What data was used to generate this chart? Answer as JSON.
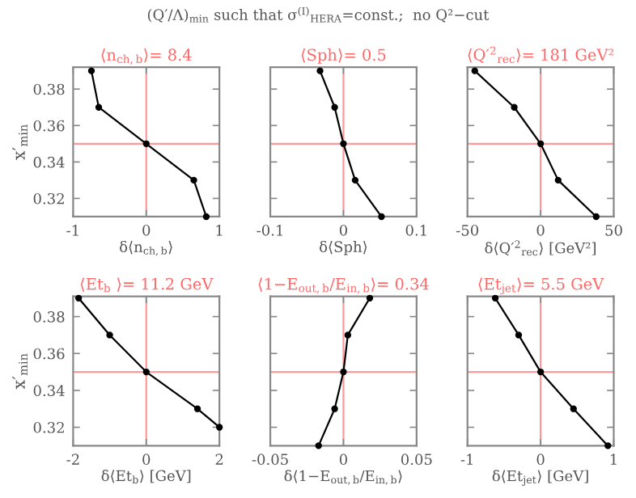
{
  "chart_data": [
    {
      "type": "line",
      "title": "⟨n$_{ch,b}$⟩= 8.4",
      "xlabel": "δ⟨n$_{ch,b}$⟩",
      "ylabel": "x′$_{min}$",
      "annotations": [
        "(Q′/Λ)$_{min}$ such that σ$^{(I)}$$_{HERA}$=const.;  no Q²−cut"
      ],
      "x": [
        -0.75,
        -0.65,
        0,
        0.65,
        0.82
      ],
      "series": [
        {
          "color": "#000000",
          "values": [
            0.39,
            0.37,
            0.35,
            0.33,
            0.31
          ]
        }
      ],
      "xlim": [
        -1,
        1
      ],
      "xticks": [
        -1,
        0,
        1
      ],
      "ylim": [
        0.31,
        0.392
      ],
      "yticks": [
        0.32,
        0.34,
        0.36,
        0.38
      ],
      "ref_lines": [
        {
          "axis": "x",
          "value": 0,
          "color": "#ff9999"
        },
        {
          "axis": "y",
          "value": 0.35,
          "color": "#ff9999"
        }
      ],
      "marker": "circle",
      "grid": false
    },
    {
      "type": "line",
      "title": "⟨Sph⟩= 0.5",
      "xlabel": "δ⟨Sph⟩",
      "x": [
        -0.032,
        -0.012,
        0,
        0.016,
        0.052
      ],
      "series": [
        {
          "color": "#000000",
          "values": [
            0.39,
            0.37,
            0.35,
            0.33,
            0.31
          ]
        }
      ],
      "xlim": [
        -0.1,
        0.1
      ],
      "xticks": [
        -0.1,
        0,
        0.1
      ],
      "ylim": [
        0.31,
        0.392
      ],
      "yticks": [
        0.32,
        0.34,
        0.36,
        0.38
      ],
      "tick_labels": "x",
      "ref_lines": [
        {
          "axis": "x",
          "value": 0,
          "color": "#ff9999"
        },
        {
          "axis": "y",
          "value": 0.35,
          "color": "#ff9999"
        }
      ],
      "marker": "circle",
      "grid": false
    },
    {
      "type": "line",
      "title": "⟨Q′$^{2}$$_{rec}$⟩= 181 GeV²",
      "xlabel": "δ⟨Q′$^{2}$$_{rec}$⟩ [GeV²]",
      "x": [
        -45,
        -18,
        0,
        12,
        38
      ],
      "series": [
        {
          "color": "#000000",
          "values": [
            0.39,
            0.37,
            0.35,
            0.33,
            0.31
          ]
        }
      ],
      "xlim": [
        -50,
        50
      ],
      "xticks": [
        -50,
        0,
        50
      ],
      "ylim": [
        0.31,
        0.392
      ],
      "yticks": [
        0.32,
        0.34,
        0.36,
        0.38
      ],
      "tick_labels": "x",
      "ref_lines": [
        {
          "axis": "x",
          "value": 0,
          "color": "#ff9999"
        },
        {
          "axis": "y",
          "value": 0.35,
          "color": "#ff9999"
        }
      ],
      "marker": "circle",
      "grid": false
    },
    {
      "type": "line",
      "title": "⟨Et$_{b}$ ⟩= 11.2 GeV",
      "xlabel": "δ⟨Et$_{b}$⟩ [GeV]",
      "ylabel": "x′$_{min}$",
      "x": [
        -1.85,
        -1.0,
        0,
        1.4,
        2.0
      ],
      "series": [
        {
          "color": "#000000",
          "values": [
            0.39,
            0.37,
            0.35,
            0.33,
            0.32
          ]
        }
      ],
      "xlim": [
        -2,
        2
      ],
      "xticks": [
        -2,
        0,
        2
      ],
      "ylim": [
        0.31,
        0.391
      ],
      "yticks": [
        0.32,
        0.34,
        0.36,
        0.38
      ],
      "ref_lines": [
        {
          "axis": "x",
          "value": 0,
          "color": "#ff9999"
        },
        {
          "axis": "y",
          "value": 0.35,
          "color": "#ff9999"
        }
      ],
      "marker": "circle",
      "grid": false
    },
    {
      "type": "line",
      "title": "⟨1−E$_{out,b}$/E$_{in,b}$⟩= 0.34",
      "xlabel": "δ⟨1−E$_{out,b}$/E$_{in,b}$⟩",
      "x": [
        0.018,
        0.003,
        0,
        -0.006,
        -0.017
      ],
      "series": [
        {
          "color": "#000000",
          "values": [
            0.39,
            0.37,
            0.35,
            0.33,
            0.31
          ]
        }
      ],
      "xlim": [
        -0.05,
        0.05
      ],
      "xticks": [
        -0.05,
        0,
        0.05
      ],
      "ylim": [
        0.31,
        0.391
      ],
      "yticks": [
        0.32,
        0.34,
        0.36,
        0.38
      ],
      "tick_labels": "x",
      "ref_lines": [
        {
          "axis": "x",
          "value": 0,
          "color": "#ff9999"
        },
        {
          "axis": "y",
          "value": 0.35,
          "color": "#ff9999"
        }
      ],
      "marker": "circle",
      "grid": false
    },
    {
      "type": "line",
      "title": "⟨Et$_{jet}$⟩= 5.5 GeV",
      "xlabel": "δ⟨Et$_{jet}$⟩ [GeV]",
      "x": [
        -0.62,
        -0.3,
        0,
        0.45,
        0.92
      ],
      "series": [
        {
          "color": "#000000",
          "values": [
            0.39,
            0.37,
            0.35,
            0.33,
            0.31
          ]
        }
      ],
      "xlim": [
        -1,
        1
      ],
      "xticks": [
        -1,
        0,
        1
      ],
      "ylim": [
        0.31,
        0.391
      ],
      "yticks": [
        0.32,
        0.34,
        0.36,
        0.38
      ],
      "tick_labels": "x",
      "ref_lines": [
        {
          "axis": "x",
          "value": 0,
          "color": "#ff9999"
        },
        {
          "axis": "y",
          "value": 0.35,
          "color": "#ff9999"
        }
      ],
      "marker": "circle",
      "grid": false
    }
  ]
}
